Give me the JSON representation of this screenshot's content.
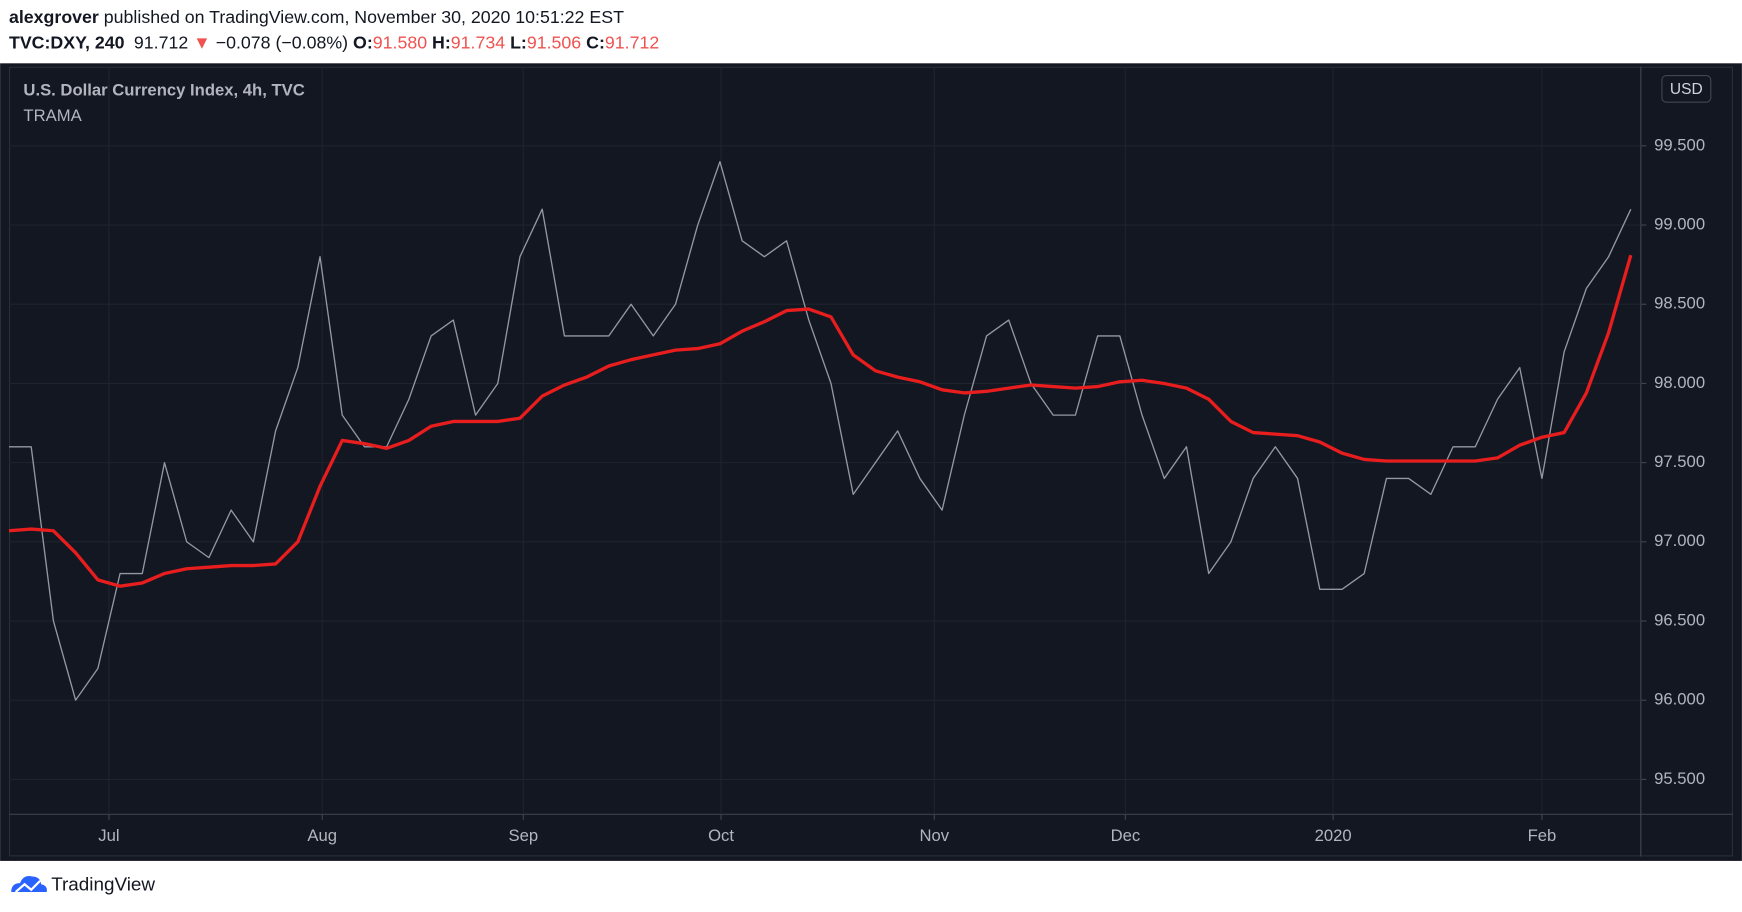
{
  "header": {
    "author": "alexgrover",
    "published": " published on TradingView.com, November 30, 2020 10:51:22 EST",
    "symbol": "TVC:DXY, 240",
    "last": "91.712",
    "arrow": "▼",
    "change": "−0.078 (−0.08%)",
    "open_label": "O:",
    "open": "91.580",
    "high_label": "H:",
    "high": "91.734",
    "low_label": "L:",
    "low": "91.506",
    "close_label": "C:",
    "close": "91.712"
  },
  "footer": "TradingView",
  "chart_data": {
    "type": "line",
    "title": "U.S. Dollar Currency Index, 4h, TVC",
    "currency": "USD",
    "x": [
      0,
      1,
      2,
      3,
      4,
      5,
      6,
      7,
      8,
      9,
      10,
      11,
      12,
      13,
      14,
      15,
      16,
      17,
      18,
      19,
      20,
      21,
      22,
      23,
      24,
      25,
      26,
      27,
      28,
      29,
      30,
      31,
      32,
      33,
      34,
      35,
      36,
      37,
      38,
      39,
      40,
      41,
      42,
      43,
      44,
      45,
      46,
      47,
      48,
      49,
      50,
      51,
      52,
      53,
      54,
      55,
      56,
      57,
      58,
      59,
      60,
      61,
      62,
      63,
      64,
      65,
      66,
      67,
      68,
      69,
      70,
      71,
      72,
      73
    ],
    "series": [
      {
        "color": "#9598a1",
        "values": [
          97.6,
          97.6,
          96.5,
          96.0,
          96.2,
          96.8,
          96.8,
          97.5,
          97.0,
          96.9,
          97.2,
          97.0,
          97.7,
          98.1,
          98.8,
          97.8,
          97.6,
          97.6,
          97.9,
          98.3,
          98.4,
          97.8,
          98.0,
          98.8,
          99.1,
          98.3,
          98.3,
          98.3,
          98.5,
          98.3,
          98.5,
          99.0,
          99.4,
          98.9,
          98.8,
          98.9,
          98.4,
          98.0,
          97.3,
          97.5,
          97.7,
          97.4,
          97.2,
          97.8,
          98.3,
          98.4,
          98.0,
          97.8,
          97.8,
          98.3,
          98.3,
          97.8,
          97.4,
          97.6,
          96.8,
          97.0,
          97.4,
          97.6,
          97.4,
          96.7,
          96.7,
          96.8,
          97.4,
          97.4,
          97.3,
          97.6,
          97.6,
          97.9,
          98.1,
          97.4,
          98.2,
          98.6,
          98.8,
          99.1
        ]
      },
      {
        "name": "TRAMA",
        "color": "#e81d1d",
        "values": [
          97.07,
          97.08,
          97.07,
          96.93,
          96.76,
          96.72,
          96.74,
          96.8,
          96.83,
          96.84,
          96.85,
          96.85,
          96.86,
          97.0,
          97.35,
          97.64,
          97.62,
          97.59,
          97.64,
          97.73,
          97.76,
          97.76,
          97.76,
          97.78,
          97.92,
          97.99,
          98.04,
          98.11,
          98.15,
          98.18,
          98.21,
          98.22,
          98.25,
          98.33,
          98.39,
          98.46,
          98.47,
          98.42,
          98.18,
          98.08,
          98.04,
          98.01,
          97.96,
          97.94,
          97.95,
          97.97,
          97.99,
          97.98,
          97.97,
          97.98,
          98.01,
          98.02,
          98.0,
          97.97,
          97.9,
          97.76,
          97.69,
          97.68,
          97.67,
          97.63,
          97.56,
          97.52,
          97.51,
          97.51,
          97.51,
          97.51,
          97.51,
          97.53,
          97.61,
          97.66,
          97.69,
          97.94,
          98.32,
          98.81
        ]
      }
    ],
    "xlim": [
      0,
      73.45
    ],
    "xticks": [
      {
        "value": 4.5,
        "label": "Jul"
      },
      {
        "value": 14.1,
        "label": "Aug"
      },
      {
        "value": 23.15,
        "label": "Sep"
      },
      {
        "value": 32.05,
        "label": "Oct"
      },
      {
        "value": 41.65,
        "label": "Nov"
      },
      {
        "value": 50.25,
        "label": "Dec"
      },
      {
        "value": 59.6,
        "label": "2020"
      },
      {
        "value": 69.0,
        "label": "Feb"
      }
    ],
    "ylim": [
      95.28,
      100.0
    ],
    "yticks": [
      {
        "value": 95.5,
        "label": "95.500"
      },
      {
        "value": 96.0,
        "label": "96.000"
      },
      {
        "value": 96.5,
        "label": "96.500"
      },
      {
        "value": 97.0,
        "label": "97.000"
      },
      {
        "value": 97.5,
        "label": "97.500"
      },
      {
        "value": 98.0,
        "label": "98.000"
      },
      {
        "value": 98.5,
        "label": "98.500"
      },
      {
        "value": 99.0,
        "label": "99.000"
      },
      {
        "value": 99.5,
        "label": "99.500"
      }
    ],
    "grid": true
  }
}
